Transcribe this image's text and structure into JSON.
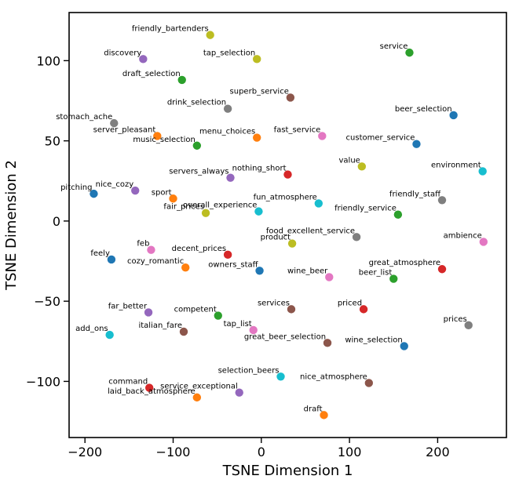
{
  "chart_data": {
    "type": "scatter",
    "title": "",
    "xlabel": "TSNE Dimension 1",
    "ylabel": "TSNE Dimension 2",
    "xlim": [
      -218,
      278
    ],
    "ylim": [
      -135,
      130
    ],
    "xticks": [
      -200,
      -100,
      0,
      100,
      200
    ],
    "yticks": [
      -100,
      -50,
      0,
      50,
      100
    ],
    "grid": false,
    "legend": "none",
    "points": [
      {
        "label": "friendly_bartenders",
        "x": -58,
        "y": 116,
        "color": "#bcbd22"
      },
      {
        "label": "tap_selection",
        "x": -5,
        "y": 101,
        "color": "#bcbd22"
      },
      {
        "label": "service",
        "x": 168,
        "y": 105,
        "color": "#2ca02c"
      },
      {
        "label": "discovery",
        "x": -134,
        "y": 101,
        "color": "#9467bd"
      },
      {
        "label": "draft_selection",
        "x": -90,
        "y": 88,
        "color": "#2ca02c"
      },
      {
        "label": "superb_service",
        "x": 33,
        "y": 77,
        "color": "#8c564b"
      },
      {
        "label": "drink_selection",
        "x": -38,
        "y": 70,
        "color": "#7f7f7f"
      },
      {
        "label": "beer_selection",
        "x": 218,
        "y": 66,
        "color": "#1f77b4"
      },
      {
        "label": "stomach_ache",
        "x": -167,
        "y": 61,
        "color": "#7f7f7f"
      },
      {
        "label": "server_pleasant",
        "x": -118,
        "y": 53,
        "color": "#ff7f0e"
      },
      {
        "label": "menu_choices",
        "x": -5,
        "y": 52,
        "color": "#ff7f0e"
      },
      {
        "label": "fast_service",
        "x": 69,
        "y": 53,
        "color": "#e377c2"
      },
      {
        "label": "customer_service",
        "x": 176,
        "y": 48,
        "color": "#1f77b4"
      },
      {
        "label": "music_selection",
        "x": -73,
        "y": 47,
        "color": "#2ca02c"
      },
      {
        "label": "value",
        "x": 114,
        "y": 34,
        "color": "#bcbd22"
      },
      {
        "label": "environment",
        "x": 251,
        "y": 31,
        "color": "#17becf"
      },
      {
        "label": "nothing_short",
        "x": 30,
        "y": 29,
        "color": "#d62728"
      },
      {
        "label": "servers_always",
        "x": -35,
        "y": 27,
        "color": "#9467bd"
      },
      {
        "label": "nice_cozy",
        "x": -143,
        "y": 19,
        "color": "#9467bd"
      },
      {
        "label": "pitching",
        "x": -190,
        "y": 17,
        "color": "#1f77b4"
      },
      {
        "label": "sport",
        "x": -100,
        "y": 14,
        "color": "#ff7f0e"
      },
      {
        "label": "fun_atmosphere",
        "x": 65,
        "y": 11,
        "color": "#17becf"
      },
      {
        "label": "friendly_staff",
        "x": 205,
        "y": 13,
        "color": "#7f7f7f"
      },
      {
        "label": "overall_experience",
        "x": -3,
        "y": 6,
        "color": "#17becf"
      },
      {
        "label": "fair_prices",
        "x": -63,
        "y": 5,
        "color": "#bcbd22"
      },
      {
        "label": "friendly_service",
        "x": 155,
        "y": 4,
        "color": "#2ca02c"
      },
      {
        "label": "food_excellent_service",
        "x": 108,
        "y": -10,
        "color": "#7f7f7f"
      },
      {
        "label": "product",
        "x": 35,
        "y": -14,
        "color": "#bcbd22"
      },
      {
        "label": "ambience",
        "x": 252,
        "y": -13,
        "color": "#e377c2"
      },
      {
        "label": "feb",
        "x": -125,
        "y": -18,
        "color": "#e377c2"
      },
      {
        "label": "decent_prices",
        "x": -38,
        "y": -21,
        "color": "#d62728"
      },
      {
        "label": "feely",
        "x": -170,
        "y": -24,
        "color": "#1f77b4"
      },
      {
        "label": "cozy_romantic",
        "x": -86,
        "y": -29,
        "color": "#ff7f0e"
      },
      {
        "label": "owners_staff",
        "x": -2,
        "y": -31,
        "color": "#1f77b4"
      },
      {
        "label": "great_atmosphere",
        "x": 205,
        "y": -30,
        "color": "#d62728"
      },
      {
        "label": "wine_beer",
        "x": 77,
        "y": -35,
        "color": "#e377c2"
      },
      {
        "label": "beer_list",
        "x": 150,
        "y": -36,
        "color": "#2ca02c"
      },
      {
        "label": "far_better",
        "x": -128,
        "y": -57,
        "color": "#9467bd"
      },
      {
        "label": "competent",
        "x": -49,
        "y": -59,
        "color": "#2ca02c"
      },
      {
        "label": "services",
        "x": 34,
        "y": -55,
        "color": "#8c564b"
      },
      {
        "label": "priced",
        "x": 116,
        "y": -55,
        "color": "#d62728"
      },
      {
        "label": "prices",
        "x": 235,
        "y": -65,
        "color": "#7f7f7f"
      },
      {
        "label": "add_ons",
        "x": -172,
        "y": -71,
        "color": "#17becf"
      },
      {
        "label": "italian_fare",
        "x": -88,
        "y": -69,
        "color": "#8c564b"
      },
      {
        "label": "tap_list",
        "x": -9,
        "y": -68,
        "color": "#e377c2"
      },
      {
        "label": "great_beer_selection",
        "x": 75,
        "y": -76,
        "color": "#8c564b"
      },
      {
        "label": "wine_selection",
        "x": 162,
        "y": -78,
        "color": "#1f77b4"
      },
      {
        "label": "selection_beers",
        "x": 22,
        "y": -97,
        "color": "#17becf"
      },
      {
        "label": "nice_atmosphere",
        "x": 122,
        "y": -101,
        "color": "#8c564b"
      },
      {
        "label": "command",
        "x": -127,
        "y": -104,
        "color": "#d62728"
      },
      {
        "label": "laid_back_atmosphere",
        "x": -73,
        "y": -110,
        "color": "#ff7f0e"
      },
      {
        "label": "service_exceptional",
        "x": -25,
        "y": -107,
        "color": "#9467bd"
      },
      {
        "label": "draft",
        "x": 71,
        "y": -121,
        "color": "#ff7f0e"
      }
    ]
  }
}
